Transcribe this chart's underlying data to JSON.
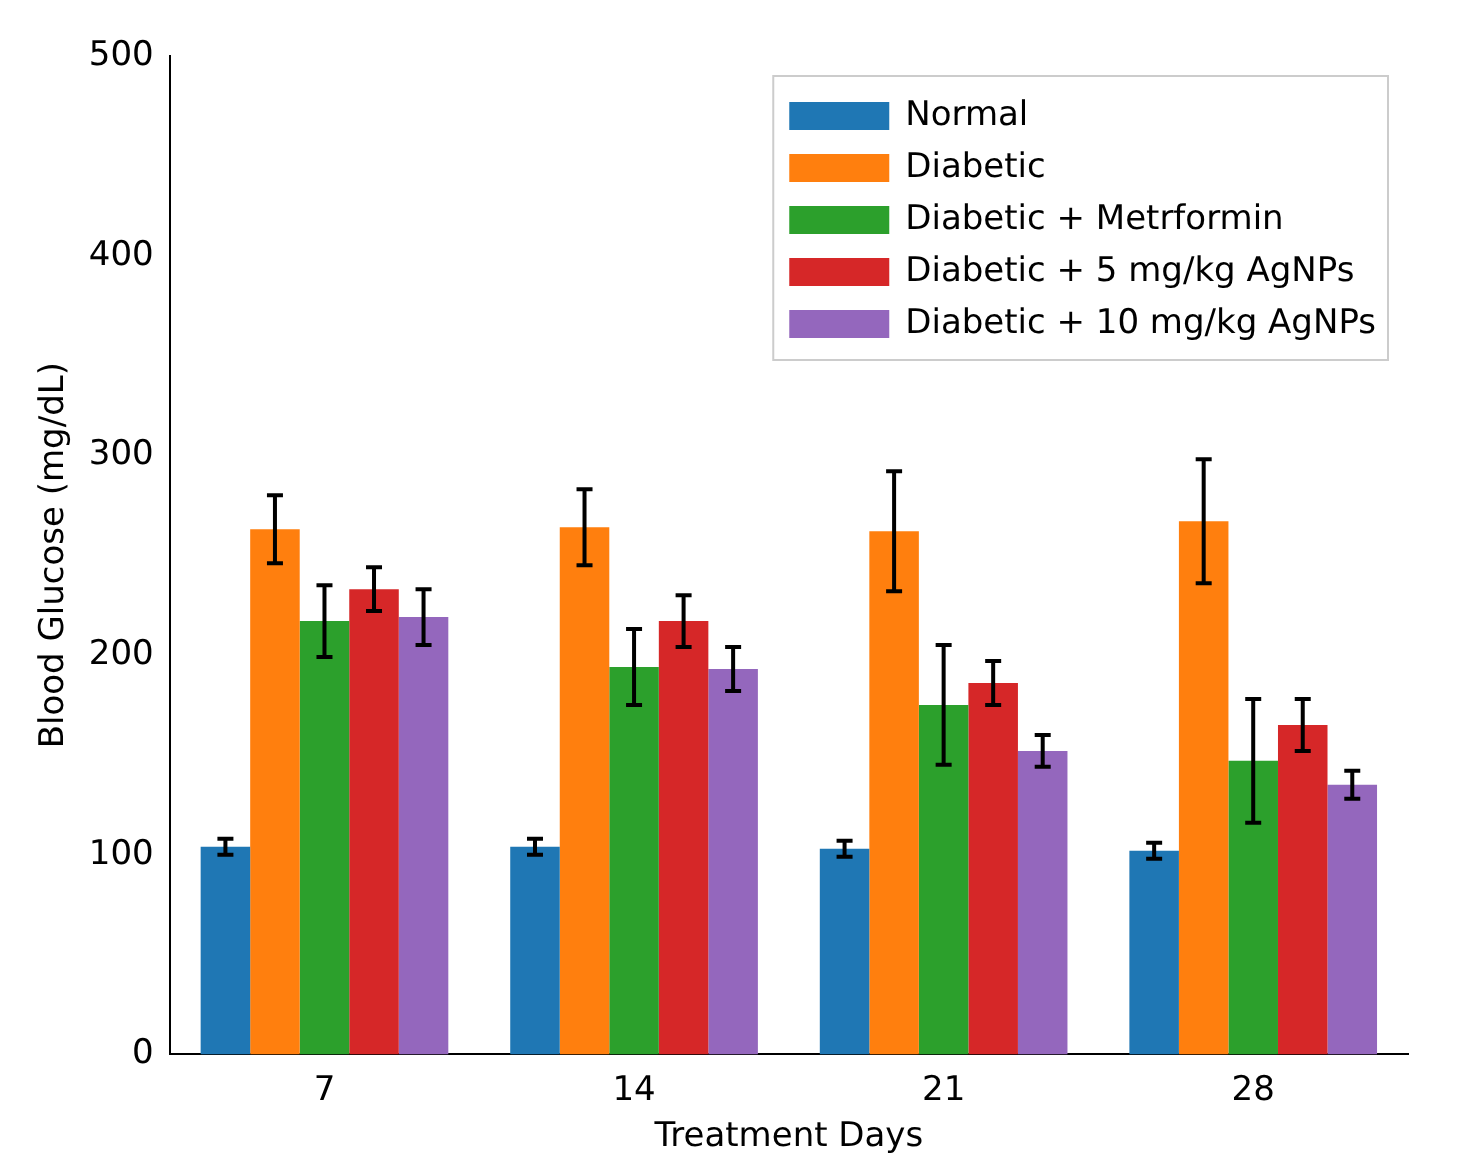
{
  "chart_data": {
    "type": "bar",
    "xlabel": "Treatment Days",
    "ylabel": "Blood Glucose (mg/dL)",
    "categories": [
      "7",
      "14",
      "21",
      "28"
    ],
    "series": [
      {
        "name": "Normal",
        "color": "#1f77b4",
        "values": [
          104,
          104,
          103,
          102
        ],
        "errors": [
          4,
          4,
          4,
          4
        ]
      },
      {
        "name": "Diabetic",
        "color": "#ff7f0e",
        "values": [
          263,
          264,
          262,
          267
        ],
        "errors": [
          17,
          19,
          30,
          31
        ]
      },
      {
        "name": "Diabetic + Metrformin",
        "color": "#2ca02c",
        "values": [
          217,
          194,
          175,
          147
        ],
        "errors": [
          18,
          19,
          30,
          31
        ]
      },
      {
        "name": "Diabetic + 5 mg/kg AgNPs",
        "color": "#d62728",
        "values": [
          233,
          217,
          186,
          165
        ],
        "errors": [
          11,
          13,
          11,
          13
        ]
      },
      {
        "name": "Diabetic + 10 mg/kg AgNPs",
        "color": "#9467bd",
        "values": [
          219,
          193,
          152,
          135
        ],
        "errors": [
          14,
          11,
          8,
          7
        ]
      }
    ],
    "ylim": [
      0,
      500
    ],
    "yticks": [
      0,
      100,
      200,
      300,
      400,
      500
    ],
    "grid": false,
    "legend": "top right"
  }
}
